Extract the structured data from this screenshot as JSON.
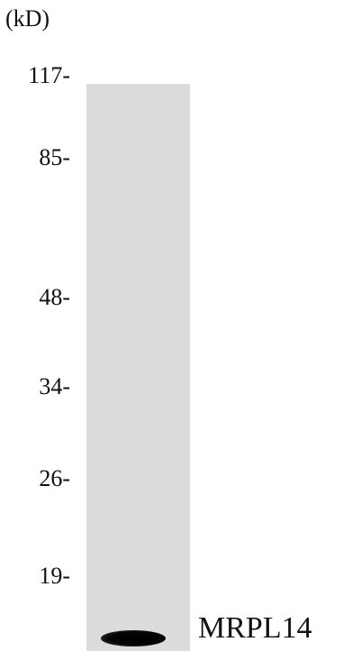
{
  "blot": {
    "unit_label": "(kD)",
    "markers": [
      "117-",
      "85-",
      "48-",
      "34-",
      "26-",
      "19-"
    ],
    "band_label": "MRPL14",
    "lane_color": "#dcdcdc",
    "band_color": "#000000"
  }
}
